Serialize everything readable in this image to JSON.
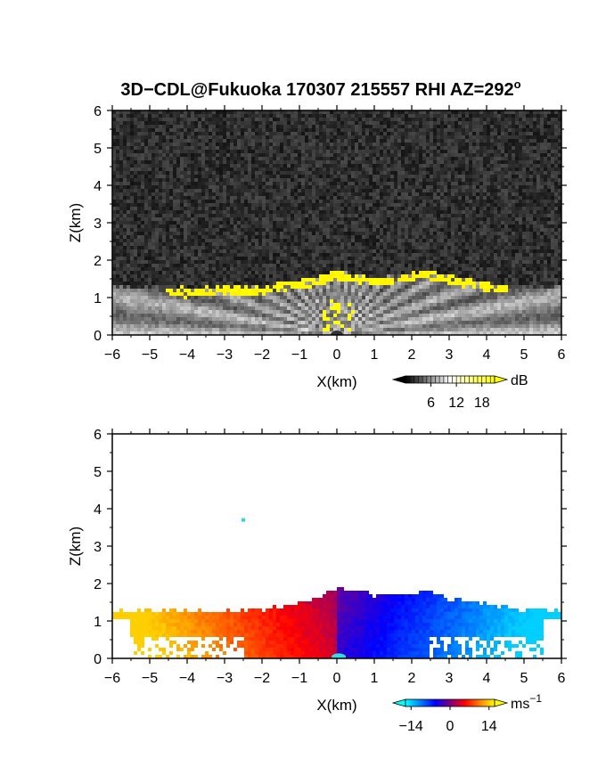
{
  "title": "3D−CDL@Fukuoka 170307 215557 RHI AZ=292",
  "title_superscript": "o",
  "chart_data": [
    {
      "type": "heatmap",
      "field": "SNR",
      "xlabel": "X(km)",
      "ylabel": "Z(km)",
      "xlim": [
        -6,
        6
      ],
      "ylim": [
        0,
        6
      ],
      "xticks": [
        "−6",
        "−5",
        "−4",
        "−3",
        "−2",
        "−1",
        "0",
        "1",
        "2",
        "3",
        "4",
        "5",
        "6"
      ],
      "yticks": [
        "0",
        "1",
        "2",
        "3",
        "4",
        "5",
        "6"
      ],
      "colorbar": {
        "unit": "dB",
        "ticks": [
          "6",
          "12",
          "18"
        ],
        "range": [
          0,
          21
        ],
        "colors": [
          "#000000",
          "#ffffff",
          "#ffff00"
        ]
      },
      "signal_top_km": [
        [
          -6,
          1.3
        ],
        [
          -4,
          1.25
        ],
        [
          -2,
          1.3
        ],
        [
          -1,
          1.45
        ],
        [
          0,
          1.7
        ],
        [
          1,
          1.55
        ],
        [
          2,
          1.65
        ],
        [
          2.4,
          1.75
        ],
        [
          3,
          1.6
        ],
        [
          4,
          1.4
        ],
        [
          5,
          1.3
        ],
        [
          6,
          1.25
        ]
      ],
      "grid": false
    },
    {
      "type": "heatmap",
      "field": "Doppler velocity",
      "xlabel": "X(km)",
      "ylabel": "Z(km)",
      "xlim": [
        -6,
        6
      ],
      "ylim": [
        0,
        6
      ],
      "xticks": [
        "−6",
        "−5",
        "−4",
        "−3",
        "−2",
        "−1",
        "0",
        "1",
        "2",
        "3",
        "4",
        "5",
        "6"
      ],
      "yticks": [
        "0",
        "1",
        "2",
        "3",
        "4",
        "5",
        "6"
      ],
      "colorbar": {
        "unit": "ms",
        "unit_superscript": "−1",
        "ticks": [
          "−14",
          "0",
          "14"
        ],
        "range": [
          -16,
          16
        ],
        "colors": [
          "#00ffff",
          "#0000ff",
          "#ff0000",
          "#ffff00"
        ]
      },
      "velocity_sign": {
        "x_negative": "positive (orange/red)",
        "x_positive": "negative (blue/cyan)"
      },
      "data_top_km": [
        [
          -6,
          1.3
        ],
        [
          -4,
          1.25
        ],
        [
          -2,
          1.3
        ],
        [
          -1,
          1.45
        ],
        [
          0,
          1.9
        ],
        [
          1,
          1.7
        ],
        [
          2,
          1.75
        ],
        [
          2.5,
          1.8
        ],
        [
          3,
          1.6
        ],
        [
          4,
          1.45
        ],
        [
          5,
          1.3
        ],
        [
          6,
          1.3
        ]
      ],
      "isolated_point": {
        "x": -2.5,
        "z": 3.7
      },
      "grid": false
    }
  ]
}
